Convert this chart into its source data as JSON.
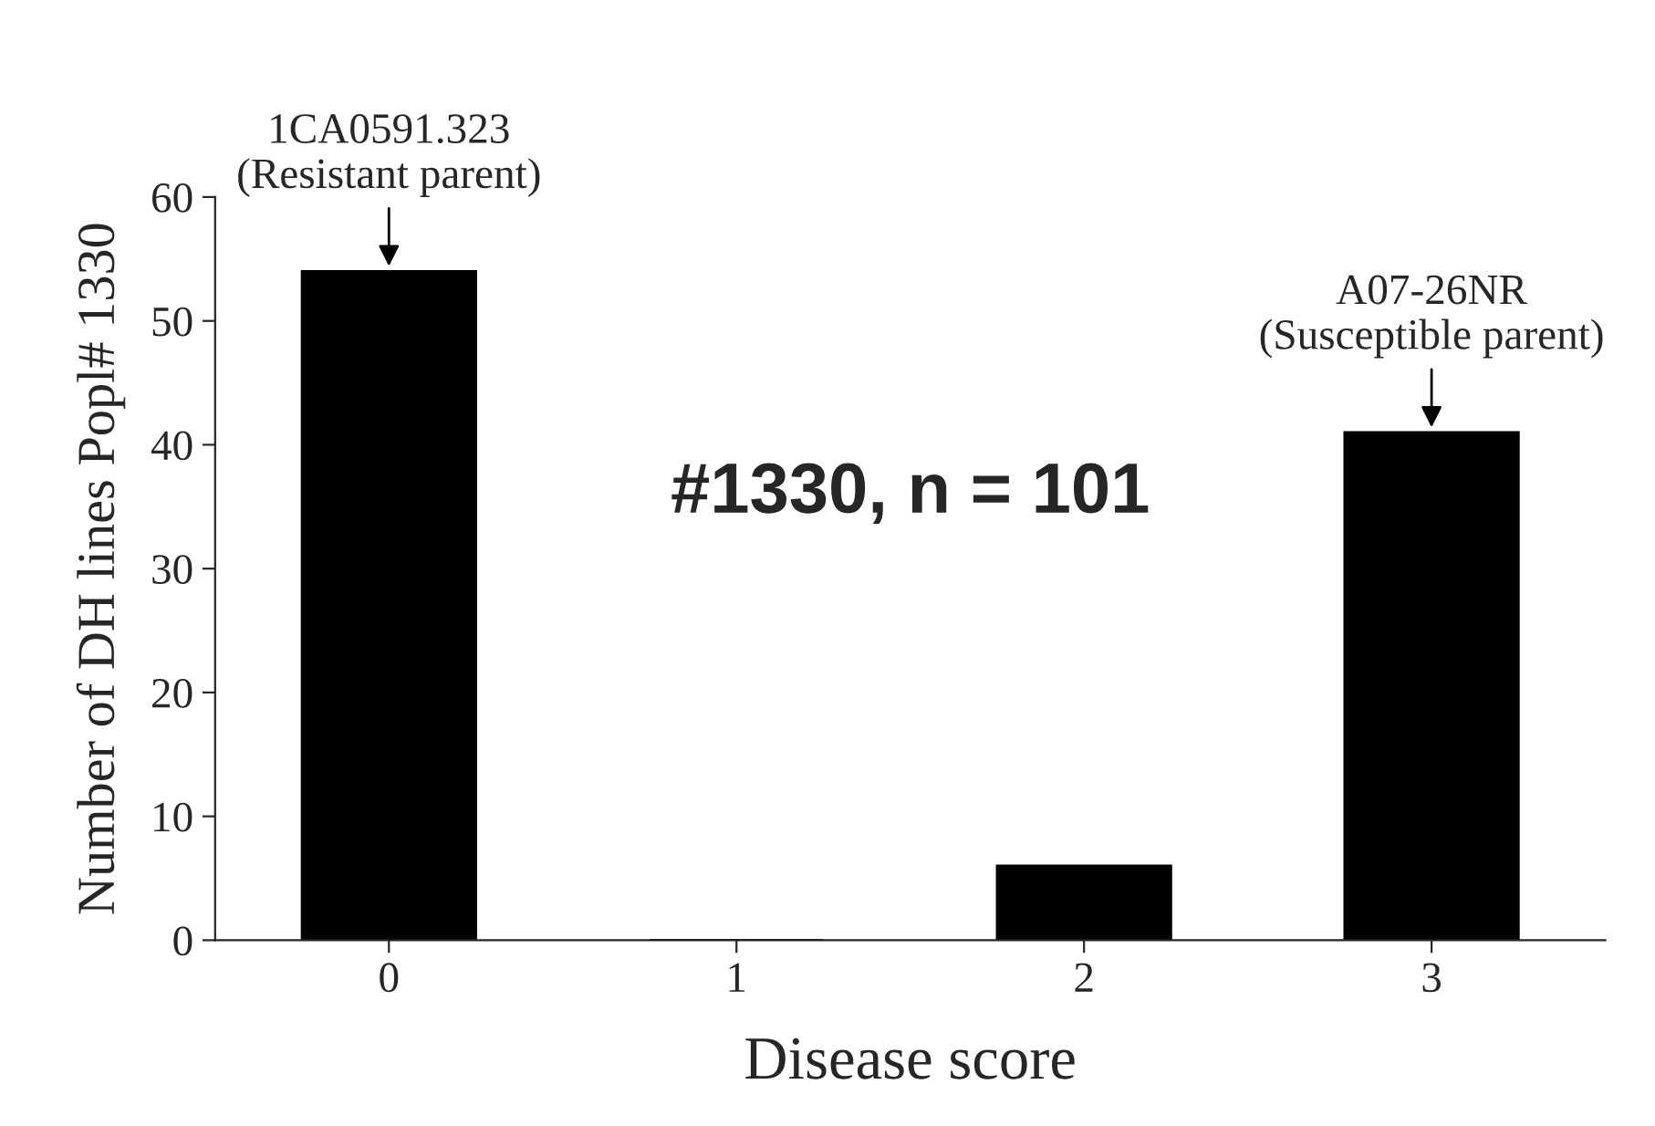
{
  "chart_data": {
    "type": "bar",
    "xlabel": "Disease score",
    "ylabel": "Number of DH lines Popl# 1330",
    "categories": [
      "0",
      "1",
      "2",
      "3"
    ],
    "values": [
      54,
      0,
      6,
      41
    ],
    "color": "#000000",
    "ylim": [
      0,
      60
    ],
    "yticks": [
      0,
      10,
      20,
      30,
      40,
      50,
      60
    ],
    "grid": false,
    "annotations": [
      {
        "text": "1CA0591.323\n(Resistant parent)",
        "x": "0",
        "y": 54
      },
      {
        "text": "A07-26NR\n(Susceptible parent)",
        "x": "3",
        "y": 41
      },
      "#1330, n = 101"
    ]
  }
}
